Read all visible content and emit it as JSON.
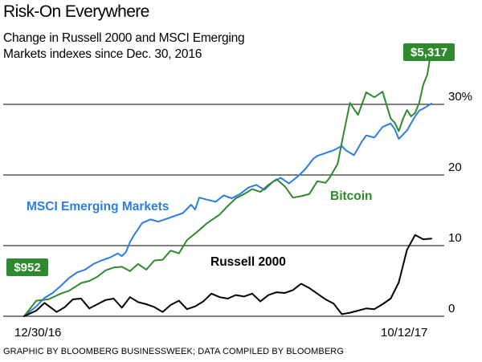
{
  "header": {
    "title": "Risk-On Everywhere",
    "subtitle": "Change in Russell 2000 and MSCI Emerging Markets indexes since Dec. 30, 2016"
  },
  "footer": {
    "credit": "GRAPHIC BY BLOOMBERG BUSINESSWEEK; DATA COMPILED BY BLOOMBERG"
  },
  "colors": {
    "msci": "#2b7de9",
    "bitcoin": "#2f8a2f",
    "russell": "#000000",
    "callout_bg": "#2f8a2f",
    "gridline": "#000000"
  },
  "chart_data": {
    "type": "line",
    "title": "Risk-On Everywhere",
    "subtitle": "Change in Russell 2000 and MSCI Emerging Markets indexes since Dec. 30, 2016",
    "x_start_label": "12/30/16",
    "x_end_label": "10/12/17",
    "x_tick_labels": [
      "12/30/16",
      "10/12/17"
    ],
    "y_axis": {
      "unit": "%",
      "ylim": [
        -1,
        31
      ],
      "gridlines": [
        0,
        10,
        20,
        30
      ],
      "tick_labels": [
        "0",
        "10",
        "20",
        "30%"
      ]
    },
    "grid": true,
    "legend": "direct labels",
    "annotations": [
      {
        "text": "$952",
        "series": "Bitcoin",
        "position": "start"
      },
      {
        "text": "$5,317",
        "series": "Bitcoin",
        "position": "end"
      }
    ],
    "series": [
      {
        "name": "MSCI Emerging Markets",
        "color": "#2b7de9",
        "points": [
          [
            0.0,
            0.0
          ],
          [
            0.03,
            1.4
          ],
          [
            0.05,
            2.6
          ],
          [
            0.07,
            3.3
          ],
          [
            0.09,
            4.3
          ],
          [
            0.11,
            5.4
          ],
          [
            0.13,
            6.2
          ],
          [
            0.15,
            6.6
          ],
          [
            0.17,
            7.4
          ],
          [
            0.19,
            7.9
          ],
          [
            0.21,
            8.3
          ],
          [
            0.23,
            8.9
          ],
          [
            0.24,
            8.5
          ],
          [
            0.25,
            9.1
          ],
          [
            0.26,
            10.5
          ],
          [
            0.27,
            11.5
          ],
          [
            0.29,
            13.2
          ],
          [
            0.31,
            13.7
          ],
          [
            0.33,
            13.4
          ],
          [
            0.35,
            13.8
          ],
          [
            0.37,
            14.2
          ],
          [
            0.39,
            14.6
          ],
          [
            0.41,
            15.8
          ],
          [
            0.42,
            15.1
          ],
          [
            0.43,
            16.8
          ],
          [
            0.45,
            16.5
          ],
          [
            0.47,
            16.2
          ],
          [
            0.49,
            17.1
          ],
          [
            0.51,
            16.7
          ],
          [
            0.53,
            17.3
          ],
          [
            0.55,
            18.2
          ],
          [
            0.57,
            18.6
          ],
          [
            0.59,
            17.9
          ],
          [
            0.61,
            19.0
          ],
          [
            0.63,
            19.6
          ],
          [
            0.65,
            18.8
          ],
          [
            0.67,
            19.7
          ],
          [
            0.69,
            20.8
          ],
          [
            0.71,
            22.3
          ],
          [
            0.72,
            22.7
          ],
          [
            0.74,
            23.1
          ],
          [
            0.76,
            23.5
          ],
          [
            0.78,
            24.1
          ],
          [
            0.79,
            23.5
          ],
          [
            0.81,
            22.8
          ],
          [
            0.83,
            24.8
          ],
          [
            0.84,
            25.6
          ],
          [
            0.86,
            25.3
          ],
          [
            0.88,
            26.8
          ],
          [
            0.9,
            27.3
          ],
          [
            0.91,
            26.5
          ],
          [
            0.92,
            25.1
          ],
          [
            0.94,
            26.3
          ],
          [
            0.95,
            27.3
          ],
          [
            0.96,
            28.3
          ],
          [
            0.97,
            29.1
          ],
          [
            0.98,
            29.4
          ],
          [
            1.0,
            30.1
          ]
        ]
      },
      {
        "name": "Bitcoin",
        "color": "#2f8a2f",
        "points": [
          [
            0.0,
            0.0
          ],
          [
            0.03,
            2.2
          ],
          [
            0.06,
            2.4
          ],
          [
            0.09,
            3.2
          ],
          [
            0.11,
            3.6
          ],
          [
            0.14,
            4.7
          ],
          [
            0.16,
            5.0
          ],
          [
            0.18,
            5.6
          ],
          [
            0.2,
            6.5
          ],
          [
            0.22,
            6.9
          ],
          [
            0.24,
            7.0
          ],
          [
            0.26,
            6.4
          ],
          [
            0.28,
            7.4
          ],
          [
            0.3,
            6.6
          ],
          [
            0.32,
            7.9
          ],
          [
            0.34,
            8.0
          ],
          [
            0.36,
            9.3
          ],
          [
            0.38,
            8.9
          ],
          [
            0.4,
            10.8
          ],
          [
            0.42,
            11.7
          ],
          [
            0.45,
            13.2
          ],
          [
            0.48,
            14.4
          ],
          [
            0.5,
            15.6
          ],
          [
            0.52,
            16.7
          ],
          [
            0.54,
            17.3
          ],
          [
            0.56,
            18.0
          ],
          [
            0.58,
            17.6
          ],
          [
            0.6,
            18.6
          ],
          [
            0.62,
            19.4
          ],
          [
            0.64,
            18.4
          ],
          [
            0.66,
            16.8
          ],
          [
            0.68,
            17.0
          ],
          [
            0.7,
            17.3
          ],
          [
            0.72,
            19.1
          ],
          [
            0.74,
            18.9
          ],
          [
            0.75,
            19.6
          ],
          [
            0.77,
            21.6
          ],
          [
            0.78,
            24.6
          ],
          [
            0.8,
            30.2
          ],
          [
            0.82,
            28.5
          ],
          [
            0.84,
            31.7
          ],
          [
            0.86,
            31.0
          ],
          [
            0.88,
            31.8
          ],
          [
            0.9,
            28.0
          ],
          [
            0.91,
            27.4
          ],
          [
            0.92,
            26.2
          ],
          [
            0.93,
            27.9
          ],
          [
            0.94,
            29.2
          ],
          [
            0.95,
            28.3
          ],
          [
            0.96,
            28.8
          ],
          [
            0.97,
            30.2
          ],
          [
            0.98,
            32.8
          ],
          [
            0.99,
            34.2
          ],
          [
            1.0,
            37.8
          ]
        ]
      },
      {
        "name": "Russell 2000",
        "color": "#000000",
        "points": [
          [
            0.0,
            0.0
          ],
          [
            0.03,
            0.8
          ],
          [
            0.05,
            1.9
          ],
          [
            0.08,
            0.6
          ],
          [
            0.1,
            1.3
          ],
          [
            0.12,
            2.4
          ],
          [
            0.14,
            2.5
          ],
          [
            0.16,
            1.1
          ],
          [
            0.18,
            1.7
          ],
          [
            0.2,
            2.3
          ],
          [
            0.22,
            2.5
          ],
          [
            0.24,
            1.2
          ],
          [
            0.26,
            2.7
          ],
          [
            0.28,
            2.0
          ],
          [
            0.3,
            1.7
          ],
          [
            0.32,
            1.3
          ],
          [
            0.34,
            0.6
          ],
          [
            0.36,
            1.6
          ],
          [
            0.38,
            2.2
          ],
          [
            0.4,
            1.0
          ],
          [
            0.42,
            1.4
          ],
          [
            0.44,
            2.1
          ],
          [
            0.46,
            3.2
          ],
          [
            0.48,
            2.7
          ],
          [
            0.5,
            2.5
          ],
          [
            0.52,
            3.0
          ],
          [
            0.54,
            2.8
          ],
          [
            0.56,
            3.2
          ],
          [
            0.58,
            2.1
          ],
          [
            0.6,
            3.0
          ],
          [
            0.62,
            3.4
          ],
          [
            0.64,
            3.3
          ],
          [
            0.66,
            3.7
          ],
          [
            0.68,
            4.6
          ],
          [
            0.7,
            4.0
          ],
          [
            0.72,
            3.2
          ],
          [
            0.74,
            2.4
          ],
          [
            0.76,
            1.8
          ],
          [
            0.78,
            0.3
          ],
          [
            0.8,
            0.5
          ],
          [
            0.82,
            0.8
          ],
          [
            0.84,
            1.1
          ],
          [
            0.86,
            1.0
          ],
          [
            0.88,
            1.7
          ],
          [
            0.9,
            2.5
          ],
          [
            0.92,
            4.8
          ],
          [
            0.94,
            9.4
          ],
          [
            0.96,
            11.5
          ],
          [
            0.98,
            10.9
          ],
          [
            1.0,
            11.0
          ]
        ]
      }
    ]
  }
}
